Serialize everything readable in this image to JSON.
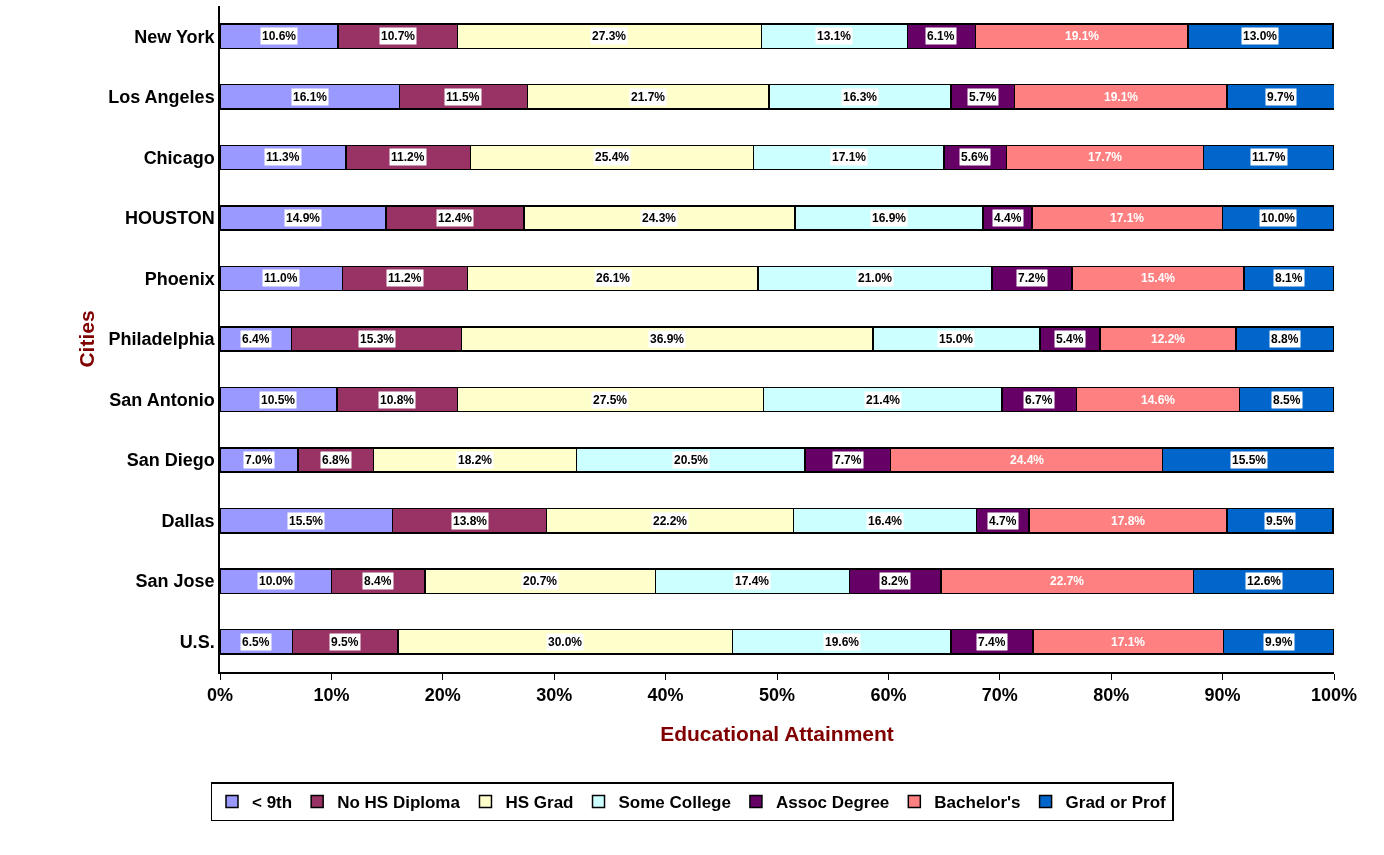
{
  "chart_data": {
    "type": "bar",
    "orientation": "horizontal",
    "stacked": true,
    "xlabel": "Educational Attainment",
    "ylabel": "Cities",
    "categories": [
      "New York",
      "Los Angeles",
      "Chicago",
      "HOUSTON",
      "Phoenix",
      "Philadelphia",
      "San Antonio",
      "San Diego",
      "Dallas",
      "San Jose",
      "U.S."
    ],
    "xlim": [
      0,
      100
    ],
    "xticks": [
      {
        "value": 0,
        "label": "0%"
      },
      {
        "value": 10,
        "label": "10%"
      },
      {
        "value": 20,
        "label": "20%"
      },
      {
        "value": 30,
        "label": "30%"
      },
      {
        "value": 40,
        "label": "40%"
      },
      {
        "value": 50,
        "label": "50%"
      },
      {
        "value": 60,
        "label": "60%"
      },
      {
        "value": 70,
        "label": "70%"
      },
      {
        "value": 80,
        "label": "80%"
      },
      {
        "value": 90,
        "label": "90%"
      },
      {
        "value": 100,
        "label": "100%"
      }
    ],
    "legend": "bottom",
    "series": [
      {
        "name": "< 9th",
        "color": "#9999ff",
        "values": [
          10.6,
          16.1,
          11.3,
          14.9,
          11.0,
          6.4,
          10.5,
          7.0,
          15.5,
          10.0,
          6.5
        ],
        "value_labels": [
          "10.6%",
          "16.1%",
          "11.3%",
          "14.9%",
          "11.0%",
          "6.4%",
          "10.5%",
          "7.0%",
          "15.5%",
          "10.0%",
          "6.5%"
        ]
      },
      {
        "name": "No HS Diploma",
        "color": "#993366",
        "values": [
          10.7,
          11.5,
          11.2,
          12.4,
          11.2,
          15.3,
          10.8,
          6.8,
          13.8,
          8.4,
          9.5
        ],
        "value_labels": [
          "10.7%",
          "11.5%",
          "11.2%",
          "12.4%",
          "11.2%",
          "15.3%",
          "10.8%",
          "6.8%",
          "13.8%",
          "8.4%",
          "9.5%"
        ]
      },
      {
        "name": "HS Grad",
        "color": "#ffffcc",
        "values": [
          27.3,
          21.7,
          25.4,
          24.3,
          26.1,
          36.9,
          27.5,
          18.2,
          22.2,
          20.7,
          30.0
        ],
        "value_labels": [
          "27.3%",
          "21.7%",
          "25.4%",
          "24.3%",
          "26.1%",
          "36.9%",
          "27.5%",
          "18.2%",
          "22.2%",
          "20.7%",
          "30.0%"
        ]
      },
      {
        "name": "Some College",
        "color": "#ccffff",
        "values": [
          13.1,
          16.3,
          17.1,
          16.9,
          21.0,
          15.0,
          21.4,
          20.5,
          16.4,
          17.4,
          19.6
        ],
        "value_labels": [
          "13.1%",
          "16.3%",
          "17.1%",
          "16.9%",
          "21.0%",
          "15.0%",
          "21.4%",
          "20.5%",
          "16.4%",
          "17.4%",
          "19.6%"
        ]
      },
      {
        "name": "Assoc Degree",
        "color": "#660066",
        "values": [
          6.1,
          5.7,
          5.6,
          4.4,
          7.2,
          5.4,
          6.7,
          7.7,
          4.7,
          8.2,
          7.4
        ],
        "value_labels": [
          "6.1%",
          "5.7%",
          "5.6%",
          "4.4%",
          "7.2%",
          "5.4%",
          "6.7%",
          "7.7%",
          "4.7%",
          "8.2%",
          "7.4%"
        ]
      },
      {
        "name": "Bachelor's",
        "color": "#ff8080",
        "values": [
          19.1,
          19.1,
          17.7,
          17.1,
          15.4,
          12.2,
          14.6,
          24.4,
          17.8,
          22.7,
          17.1
        ],
        "value_labels": [
          "19.1%",
          "19.1%",
          "17.7%",
          "17.1%",
          "15.4%",
          "12.2%",
          "14.6%",
          "24.4%",
          "17.8%",
          "22.7%",
          "17.1%"
        ]
      },
      {
        "name": "Grad or Prof",
        "color": "#0066cc",
        "values": [
          13.0,
          9.7,
          11.7,
          10.0,
          8.1,
          8.8,
          8.5,
          15.5,
          9.5,
          12.6,
          9.9
        ],
        "value_labels": [
          "13.0%",
          "9.7%",
          "11.7%",
          "10.0%",
          "8.1%",
          "8.8%",
          "8.5%",
          "15.5%",
          "9.5%",
          "12.6%",
          "9.9%"
        ]
      }
    ]
  }
}
